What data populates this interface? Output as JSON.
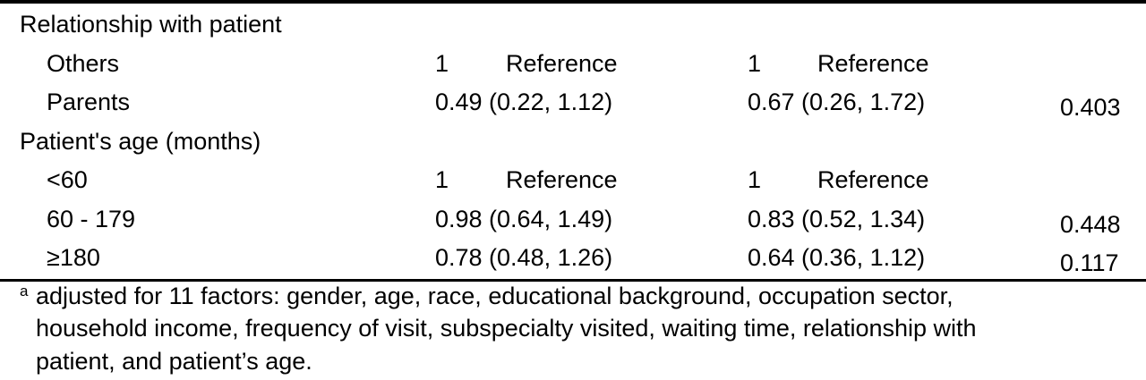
{
  "table": {
    "sections": [
      {
        "label": "Relationship with patient",
        "rows": [
          {
            "label": "Others",
            "unadj_value": "1",
            "unadj_ref": "Reference",
            "adj_value": "1",
            "adj_ref": "Reference",
            "p": ""
          },
          {
            "label": "Parents",
            "unadj_value": "0.49 (0.22, 1.12)",
            "unadj_ref": "",
            "adj_value": "0.67 (0.26, 1.72)",
            "adj_ref": "",
            "p": "0.403"
          }
        ]
      },
      {
        "label": "Patient's age (months)",
        "rows": [
          {
            "label": "<60",
            "unadj_value": "1",
            "unadj_ref": "Reference",
            "adj_value": "1",
            "adj_ref": "Reference",
            "p": ""
          },
          {
            "label": "60 - 179",
            "unadj_value": "0.98 (0.64, 1.49)",
            "unadj_ref": "",
            "adj_value": "0.83 (0.52, 1.34)",
            "adj_ref": "",
            "p": "0.448"
          },
          {
            "label": "≥180",
            "unadj_value": "0.78 (0.48, 1.26)",
            "unadj_ref": "",
            "adj_value": "0.64 (0.36, 1.12)",
            "adj_ref": "",
            "p": "0.117"
          }
        ]
      }
    ]
  },
  "footnote": {
    "marker": "a",
    "lines": [
      "adjusted for 11 factors: gender, age, race, educational background, occupation sector,",
      "household income, frequency of visit, subspecialty visited, waiting time, relationship with",
      "patient, and patient’s age."
    ]
  }
}
